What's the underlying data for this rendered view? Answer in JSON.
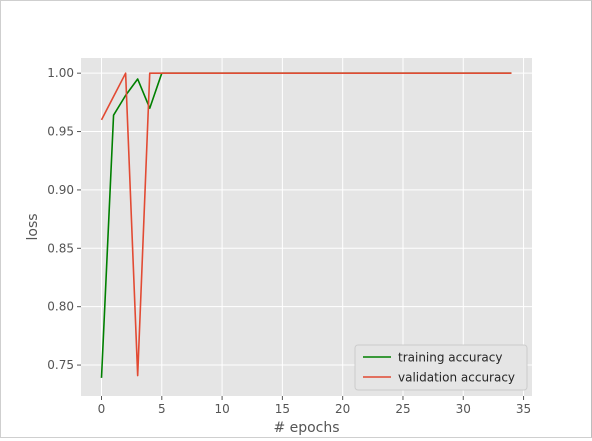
{
  "chart_data": {
    "type": "line",
    "title": "",
    "xlabel": "# epochs",
    "ylabel": "loss",
    "xlim": [
      -1.7,
      35.7
    ],
    "ylim": [
      0.7235,
      1.013
    ],
    "xticks": [
      0,
      5,
      10,
      15,
      20,
      25,
      30,
      35
    ],
    "yticks": [
      0.75,
      0.8,
      0.85,
      0.9,
      0.95,
      1.0
    ],
    "ytick_labels": [
      "0.75",
      "0.80",
      "0.85",
      "0.90",
      "0.95",
      "1.00"
    ],
    "grid": true,
    "legend_position": "lower-right",
    "series": [
      {
        "name": "training accuracy",
        "color": "#008000",
        "x": [
          0,
          1,
          2,
          3,
          4,
          5,
          6,
          7,
          8,
          9,
          10,
          11,
          12,
          13,
          14,
          15,
          16,
          17,
          18,
          19,
          20,
          21,
          22,
          23,
          24,
          25,
          26,
          27,
          28,
          29,
          30,
          31,
          32,
          33,
          34
        ],
        "values": [
          0.739,
          0.964,
          0.981,
          0.995,
          0.97,
          1.0,
          1.0,
          1.0,
          1.0,
          1.0,
          1.0,
          1.0,
          1.0,
          1.0,
          1.0,
          1.0,
          1.0,
          1.0,
          1.0,
          1.0,
          1.0,
          1.0,
          1.0,
          1.0,
          1.0,
          1.0,
          1.0,
          1.0,
          1.0,
          1.0,
          1.0,
          1.0,
          1.0,
          1.0,
          1.0
        ]
      },
      {
        "name": "validation accuracy",
        "color": "#e24a33",
        "x": [
          0,
          1,
          2,
          3,
          4,
          5,
          6,
          7,
          8,
          9,
          10,
          11,
          12,
          13,
          14,
          15,
          16,
          17,
          18,
          19,
          20,
          21,
          22,
          23,
          24,
          25,
          26,
          27,
          28,
          29,
          30,
          31,
          32,
          33,
          34
        ],
        "values": [
          0.96,
          0.98,
          1.0,
          0.741,
          1.0,
          1.0,
          1.0,
          1.0,
          1.0,
          1.0,
          1.0,
          1.0,
          1.0,
          1.0,
          1.0,
          1.0,
          1.0,
          1.0,
          1.0,
          1.0,
          1.0,
          1.0,
          1.0,
          1.0,
          1.0,
          1.0,
          1.0,
          1.0,
          1.0,
          1.0,
          1.0,
          1.0,
          1.0,
          1.0,
          1.0
        ]
      }
    ]
  }
}
